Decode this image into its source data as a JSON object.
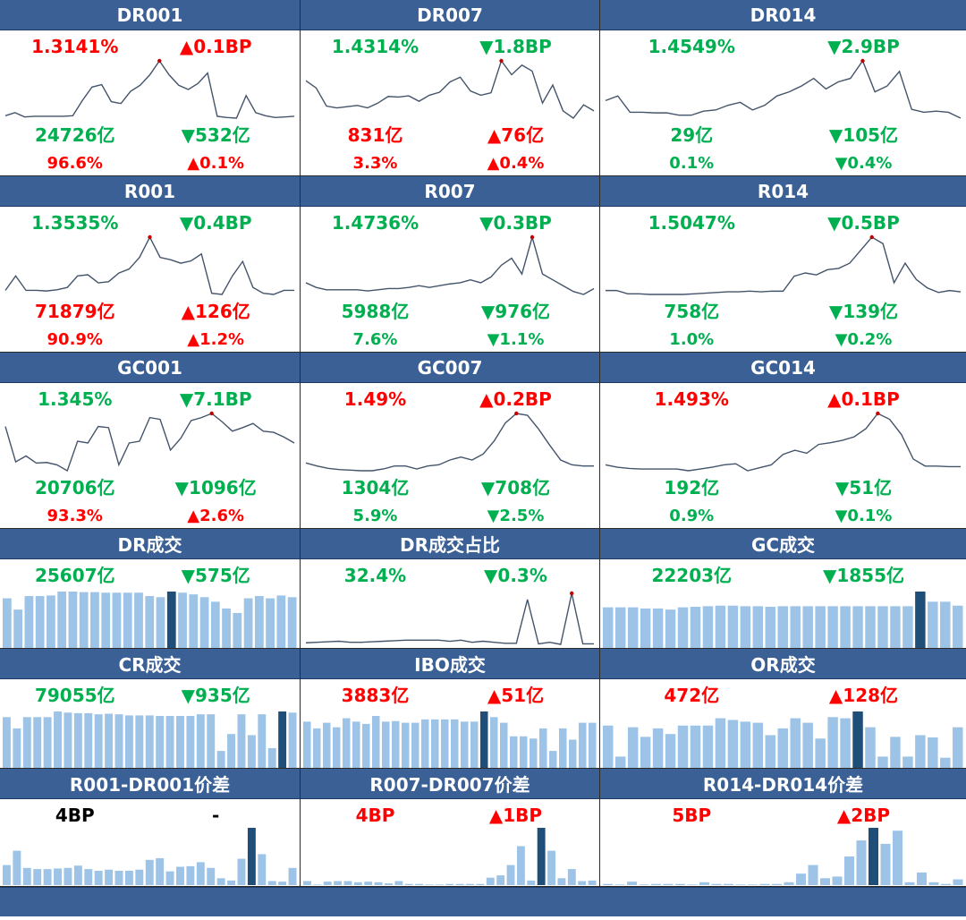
{
  "colors": {
    "red": "#ff0000",
    "green": "#00b050",
    "black": "#000000",
    "header": "#3a6095",
    "bar": "#9dc3e6",
    "bar_highlight": "#1f4e79",
    "line": "#44546a",
    "peak": "#c00000"
  },
  "panels": [
    {
      "type": "rate",
      "title": "DR001",
      "rate": {
        "text": "1.3141%",
        "color": "red"
      },
      "change": {
        "text": "▲0.1BP",
        "color": "red"
      },
      "volume": {
        "text": "24726亿",
        "color": "green"
      },
      "volume_change": {
        "text": "▼532亿",
        "color": "green"
      },
      "share": {
        "text": "96.6%",
        "color": "red"
      },
      "share_change": {
        "text": "▲0.1%",
        "color": "red"
      },
      "line": [
        0.05,
        0.1,
        0.03,
        0.04,
        0.04,
        0.04,
        0.04,
        0.05,
        0.3,
        0.52,
        0.56,
        0.28,
        0.25,
        0.45,
        0.55,
        0.72,
        0.95,
        0.72,
        0.55,
        0.48,
        0.58,
        0.75,
        0.04,
        0.02,
        0.01,
        0.38,
        0.1,
        0.05,
        0.02,
        0.03,
        0.04
      ]
    },
    {
      "type": "rate",
      "title": "DR007",
      "rate": {
        "text": "1.4314%",
        "color": "green"
      },
      "change": {
        "text": "▼1.8BP",
        "color": "green"
      },
      "volume": {
        "text": "831亿",
        "color": "red"
      },
      "volume_change": {
        "text": "▲76亿",
        "color": "red"
      },
      "share": {
        "text": "3.3%",
        "color": "red"
      },
      "share_change": {
        "text": "▲0.4%",
        "color": "red"
      },
      "line": [
        0.62,
        0.5,
        0.2,
        0.17,
        0.19,
        0.21,
        0.17,
        0.25,
        0.36,
        0.35,
        0.37,
        0.28,
        0.38,
        0.43,
        0.6,
        0.68,
        0.45,
        0.38,
        0.42,
        0.95,
        0.72,
        0.88,
        0.78,
        0.25,
        0.55,
        0.12,
        0.0,
        0.22,
        0.12
      ]
    },
    {
      "type": "rate",
      "title": "DR014",
      "rate": {
        "text": "1.4549%",
        "color": "green"
      },
      "change": {
        "text": "▼2.9BP",
        "color": "green"
      },
      "volume": {
        "text": "29亿",
        "color": "green"
      },
      "volume_change": {
        "text": "▼105亿",
        "color": "green"
      },
      "share": {
        "text": "0.1%",
        "color": "green"
      },
      "share_change": {
        "text": "▼0.4%",
        "color": "green"
      },
      "line": [
        0.3,
        0.38,
        0.1,
        0.1,
        0.09,
        0.09,
        0.05,
        0.05,
        0.12,
        0.14,
        0.22,
        0.27,
        0.14,
        0.22,
        0.38,
        0.45,
        0.55,
        0.68,
        0.5,
        0.62,
        0.68,
        0.98,
        0.45,
        0.55,
        0.8,
        0.15,
        0.1,
        0.12,
        0.1,
        0.0
      ]
    },
    {
      "type": "rate",
      "title": "R001",
      "rate": {
        "text": "1.3535%",
        "color": "green"
      },
      "change": {
        "text": "▼0.4BP",
        "color": "green"
      },
      "volume": {
        "text": "71879亿",
        "color": "red"
      },
      "volume_change": {
        "text": "▲126亿",
        "color": "red"
      },
      "share": {
        "text": "90.9%",
        "color": "red"
      },
      "share_change": {
        "text": "▲1.2%",
        "color": "red"
      },
      "line": [
        0.05,
        0.3,
        0.05,
        0.05,
        0.04,
        0.06,
        0.1,
        0.3,
        0.32,
        0.18,
        0.2,
        0.35,
        0.42,
        0.62,
        0.97,
        0.62,
        0.58,
        0.52,
        0.56,
        0.68,
        0.0,
        -0.02,
        0.3,
        0.55,
        0.1,
        0.0,
        -0.02,
        0.05,
        0.05
      ]
    },
    {
      "type": "rate",
      "title": "R007",
      "rate": {
        "text": "1.4736%",
        "color": "green"
      },
      "change": {
        "text": "▼0.3BP",
        "color": "green"
      },
      "volume": {
        "text": "5988亿",
        "color": "green"
      },
      "volume_change": {
        "text": "▼976亿",
        "color": "green"
      },
      "share": {
        "text": "7.6%",
        "color": "green"
      },
      "share_change": {
        "text": "▼1.1%",
        "color": "green"
      },
      "line": [
        0.2,
        0.12,
        0.08,
        0.08,
        0.08,
        0.08,
        0.06,
        0.08,
        0.1,
        0.1,
        0.12,
        0.15,
        0.12,
        0.15,
        0.18,
        0.2,
        0.25,
        0.2,
        0.3,
        0.5,
        0.62,
        0.35,
        0.98,
        0.35,
        0.25,
        0.15,
        0.05,
        0.0,
        0.1
      ]
    },
    {
      "type": "rate",
      "title": "R014",
      "rate": {
        "text": "1.5047%",
        "color": "green"
      },
      "change": {
        "text": "▼0.5BP",
        "color": "green"
      },
      "volume": {
        "text": "758亿",
        "color": "green"
      },
      "volume_change": {
        "text": "▼139亿",
        "color": "green"
      },
      "share": {
        "text": "1.0%",
        "color": "green"
      },
      "share_change": {
        "text": "▼0.2%",
        "color": "green"
      },
      "line": [
        0.08,
        0.08,
        0.03,
        0.03,
        0.02,
        0.02,
        0.02,
        0.02,
        0.03,
        0.04,
        0.05,
        0.06,
        0.06,
        0.07,
        0.06,
        0.07,
        0.07,
        0.3,
        0.35,
        0.32,
        0.4,
        0.42,
        0.5,
        0.7,
        0.9,
        0.8,
        0.2,
        0.5,
        0.25,
        0.12,
        0.05,
        0.08,
        0.06
      ]
    },
    {
      "type": "rate",
      "title": "GC001",
      "rate": {
        "text": "1.345%",
        "color": "green"
      },
      "change": {
        "text": "▼7.1BP",
        "color": "green"
      },
      "volume": {
        "text": "20706亿",
        "color": "green"
      },
      "volume_change": {
        "text": "▼1096亿",
        "color": "green"
      },
      "share": {
        "text": "93.3%",
        "color": "red"
      },
      "share_change": {
        "text": "▲2.6%",
        "color": "red"
      },
      "line": [
        0.7,
        0.1,
        0.2,
        0.08,
        0.09,
        0.05,
        -0.05,
        0.45,
        0.42,
        0.7,
        0.68,
        0.05,
        0.42,
        0.45,
        0.85,
        0.82,
        0.3,
        0.5,
        0.8,
        0.85,
        0.92,
        0.78,
        0.62,
        0.68,
        0.75,
        0.62,
        0.6,
        0.52,
        0.42
      ]
    },
    {
      "type": "rate",
      "title": "GC007",
      "rate": {
        "text": "1.49%",
        "color": "red"
      },
      "change": {
        "text": "▲0.2BP",
        "color": "red"
      },
      "volume": {
        "text": "1304亿",
        "color": "green"
      },
      "volume_change": {
        "text": "▼708亿",
        "color": "green"
      },
      "share": {
        "text": "5.9%",
        "color": "green"
      },
      "share_change": {
        "text": "▼2.5%",
        "color": "green"
      },
      "line": [
        0.15,
        0.1,
        0.06,
        0.04,
        0.03,
        0.02,
        0.02,
        0.05,
        0.1,
        0.1,
        0.05,
        0.1,
        0.12,
        0.2,
        0.25,
        0.2,
        0.3,
        0.52,
        0.82,
        0.98,
        0.95,
        0.72,
        0.45,
        0.2,
        0.12,
        0.1,
        0.1
      ]
    },
    {
      "type": "rate",
      "title": "GC014",
      "rate": {
        "text": "1.493%",
        "color": "red"
      },
      "change": {
        "text": "▲0.1BP",
        "color": "red"
      },
      "volume": {
        "text": "192亿",
        "color": "green"
      },
      "volume_change": {
        "text": "▼51亿",
        "color": "green"
      },
      "share": {
        "text": "0.9%",
        "color": "green"
      },
      "share_change": {
        "text": "▼0.1%",
        "color": "green"
      },
      "line": [
        0.1,
        0.06,
        0.04,
        0.03,
        0.03,
        0.03,
        0.03,
        0.0,
        0.03,
        0.06,
        0.1,
        0.12,
        0.0,
        0.05,
        0.1,
        0.28,
        0.35,
        0.3,
        0.45,
        0.48,
        0.52,
        0.58,
        0.72,
        0.98,
        0.88,
        0.62,
        0.2,
        0.08,
        0.08,
        0.07,
        0.07
      ]
    },
    {
      "type": "bars",
      "title": "DR成交",
      "value": {
        "text": "25607亿",
        "color": "green"
      },
      "change": {
        "text": "▼575亿",
        "color": "green"
      },
      "bars": [
        0.88,
        0.68,
        0.92,
        0.92,
        0.93,
        1,
        1,
        0.99,
        0.99,
        0.98,
        0.98,
        0.98,
        0.98,
        0.92,
        0.9,
        1,
        0.98,
        0.95,
        0.9,
        0.82,
        0.7,
        0.62,
        0.88,
        0.92,
        0.88,
        0.93,
        0.9
      ],
      "highlight": 15
    },
    {
      "type": "line",
      "title": "DR成交占比",
      "value": {
        "text": "32.4%",
        "color": "green"
      },
      "change": {
        "text": "▼0.3%",
        "color": "green"
      },
      "line": [
        0.05,
        0.06,
        0.07,
        0.08,
        0.06,
        0.06,
        0.07,
        0.08,
        0.09,
        0.1,
        0.1,
        0.1,
        0.1,
        0.08,
        0.1,
        0.06,
        0.08,
        0.06,
        0.04,
        0.04,
        0.88,
        0.03,
        0.06,
        0.02,
        1,
        0.03,
        0.03
      ]
    },
    {
      "type": "bars",
      "title": "GC成交",
      "value": {
        "text": "22203亿",
        "color": "green"
      },
      "change": {
        "text": "▼1855亿",
        "color": "green"
      },
      "bars": [
        0.72,
        0.72,
        0.72,
        0.7,
        0.7,
        0.68,
        0.72,
        0.73,
        0.74,
        0.75,
        0.75,
        0.74,
        0.74,
        0.73,
        0.74,
        0.74,
        0.74,
        0.74,
        0.74,
        0.74,
        0.74,
        0.74,
        0.74,
        0.74,
        0.74,
        1,
        0.82,
        0.82,
        0.75
      ],
      "highlight": 25
    },
    {
      "type": "bars",
      "title": "CR成交",
      "value": {
        "text": "79055亿",
        "color": "green"
      },
      "change": {
        "text": "▼935亿",
        "color": "green"
      },
      "bars": [
        0.9,
        0.7,
        0.9,
        0.9,
        0.9,
        1,
        0.98,
        0.97,
        0.97,
        0.95,
        0.96,
        0.95,
        0.93,
        0.93,
        0.93,
        0.92,
        0.92,
        0.92,
        0.92,
        0.95,
        0.95,
        0.3,
        0.6,
        0.95,
        0.58,
        0.95,
        0.35,
        1,
        0.98
      ],
      "highlight": 27
    },
    {
      "type": "bars",
      "title": "IBO成交",
      "value": {
        "text": "3883亿",
        "color": "red"
      },
      "change": {
        "text": "▲51亿",
        "color": "red"
      },
      "bars": [
        0.82,
        0.7,
        0.8,
        0.72,
        0.88,
        0.82,
        0.78,
        0.92,
        0.82,
        0.83,
        0.8,
        0.8,
        0.86,
        0.86,
        0.86,
        0.86,
        0.82,
        0.82,
        1,
        0.9,
        0.8,
        0.56,
        0.56,
        0.52,
        0.7,
        0.3,
        0.7,
        0.5,
        0.8,
        0.8
      ],
      "highlight": 18
    },
    {
      "type": "bars",
      "title": "OR成交",
      "value": {
        "text": "472亿",
        "color": "red"
      },
      "change": {
        "text": "▲128亿",
        "color": "red"
      },
      "bars": [
        0.75,
        0.2,
        0.72,
        0.55,
        0.7,
        0.6,
        0.75,
        0.75,
        0.75,
        0.88,
        0.85,
        0.82,
        0.8,
        0.58,
        0.7,
        0.88,
        0.8,
        0.52,
        0.9,
        0.88,
        1,
        0.72,
        0.2,
        0.55,
        0.2,
        0.58,
        0.54,
        0.18,
        0.72
      ],
      "highlight": 20
    },
    {
      "type": "bars",
      "title": "R001-DR001价差",
      "value": {
        "text": "4BP",
        "color": "black"
      },
      "change": {
        "text": "-",
        "color": "black"
      },
      "bars": [
        0.35,
        0.6,
        0.3,
        0.28,
        0.28,
        0.29,
        0.3,
        0.34,
        0.28,
        0.25,
        0.27,
        0.25,
        0.25,
        0.27,
        0.44,
        0.47,
        0.24,
        0.32,
        0.33,
        0.4,
        0.3,
        0.12,
        0.08,
        0.46,
        1,
        0.54,
        0.07,
        0.06,
        0.3
      ],
      "highlight": 24
    },
    {
      "type": "bars",
      "title": "R007-DR007价差",
      "value": {
        "text": "4BP",
        "color": "red"
      },
      "change": {
        "text": "▲1BP",
        "color": "red"
      },
      "bars": [
        0.07,
        0.01,
        0.06,
        0.07,
        0.07,
        0.05,
        0.06,
        0.05,
        0.03,
        0.07,
        0.02,
        0.02,
        0.0,
        0.01,
        0.02,
        0.02,
        0.02,
        0.02,
        0.13,
        0.17,
        0.35,
        0.68,
        0.08,
        1,
        0.6,
        0.12,
        0.28,
        0.07,
        0.08
      ],
      "highlight": 23
    },
    {
      "type": "bars",
      "title": "R014-DR014价差",
      "value": {
        "text": "5BP",
        "color": "red"
      },
      "change": {
        "text": "▲2BP",
        "color": "red"
      },
      "bars": [
        0.02,
        0.0,
        0.06,
        0.0,
        0.02,
        0.02,
        0.02,
        0.0,
        0.05,
        0.02,
        0.02,
        0.0,
        0.0,
        0.02,
        0.02,
        0.05,
        0.2,
        0.35,
        0.12,
        0.15,
        0.5,
        0.78,
        1,
        0.72,
        0.95,
        0.05,
        0.22,
        0.05,
        0.02,
        0.1
      ],
      "highlight": 22
    }
  ]
}
